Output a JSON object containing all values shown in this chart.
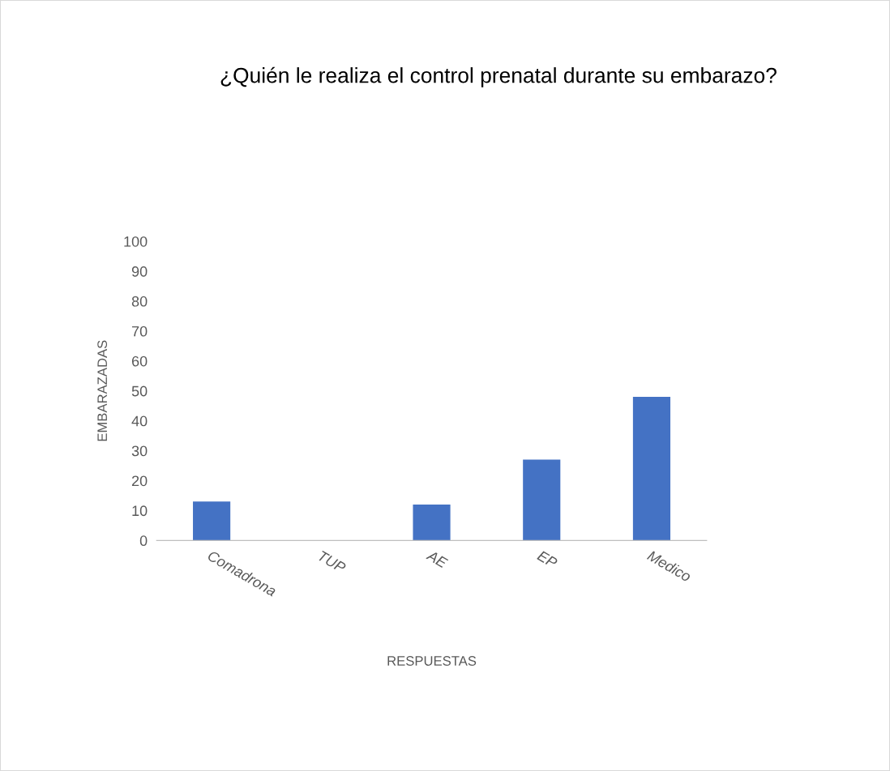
{
  "chart_data": {
    "type": "bar",
    "title": "¿Quién le realiza el control prenatal durante su embarazo?",
    "xlabel": "RESPUESTAS",
    "ylabel": "EMBARAZADAS",
    "categories": [
      "Comadrona",
      "TUP",
      "AE",
      "EP",
      "Medico"
    ],
    "values": [
      13,
      0,
      12,
      27,
      48
    ],
    "color": "#4472c4",
    "ylim": [
      0,
      100
    ],
    "yticks": [
      0,
      10,
      20,
      30,
      40,
      50,
      60,
      70,
      80,
      90,
      100
    ],
    "grid": false,
    "legend": false
  }
}
